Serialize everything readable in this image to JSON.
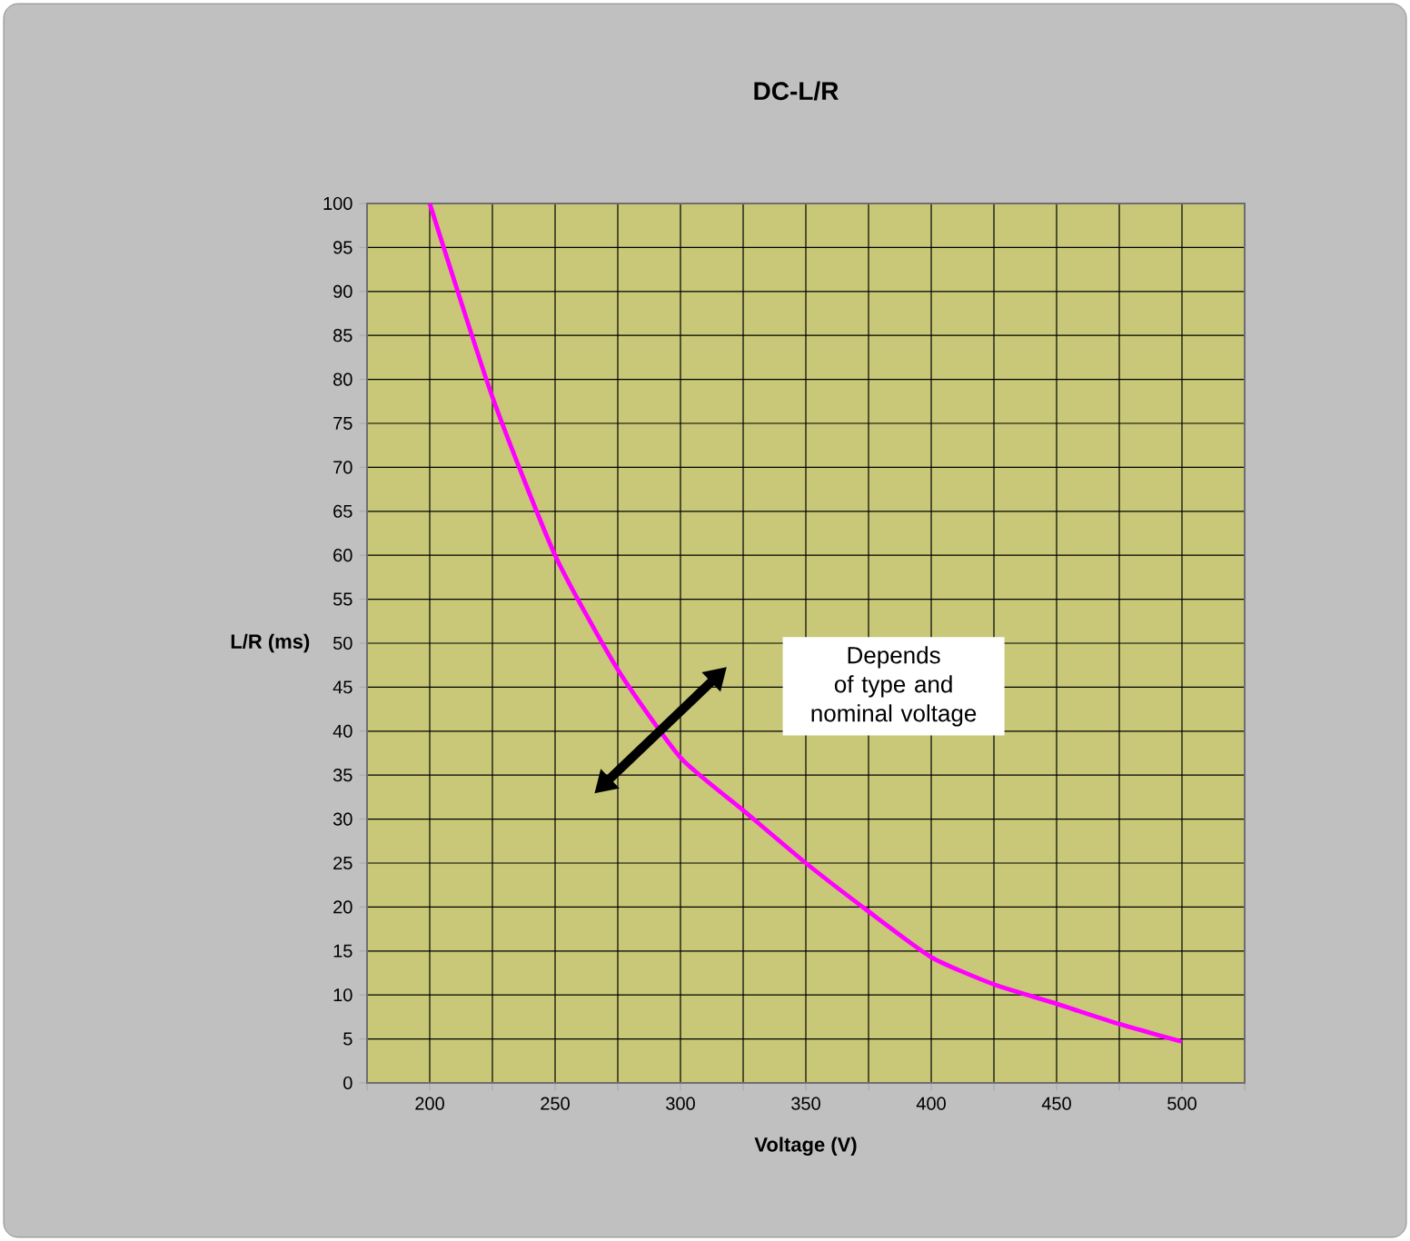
{
  "chart_data": {
    "type": "line",
    "title": "DC-L/R",
    "xlabel": "Voltage (V)",
    "ylabel": "L/R (ms)",
    "annotations": [
      "Depends of type and nominal voltage"
    ],
    "x": [
      200,
      225,
      250,
      275,
      300,
      325,
      350,
      375,
      400,
      425,
      450,
      475,
      500
    ],
    "series": [
      {
        "color": "#ff00ff",
        "values": [
          100,
          78,
          60,
          47,
          37,
          31,
          25,
          19.5,
          14.3,
          11.2,
          9,
          6.7,
          4.7
        ]
      }
    ],
    "xlim": [
      175,
      525
    ],
    "xticks": [
      {
        "value": 175,
        "label": null
      },
      200,
      {
        "value": 225,
        "label": null
      },
      250,
      {
        "value": 275,
        "label": null
      },
      300,
      {
        "value": 325,
        "label": null
      },
      350,
      {
        "value": 375,
        "label": null
      },
      400,
      {
        "value": 425,
        "label": null
      },
      450,
      {
        "value": 475,
        "label": null
      },
      500,
      {
        "value": 525,
        "label": null
      }
    ],
    "ylim": [
      0,
      100
    ],
    "yticks": [
      0,
      5,
      10,
      15,
      20,
      25,
      30,
      35,
      40,
      45,
      50,
      55,
      60,
      65,
      70,
      75,
      80,
      85,
      90,
      95,
      100
    ],
    "grid": true
  }
}
